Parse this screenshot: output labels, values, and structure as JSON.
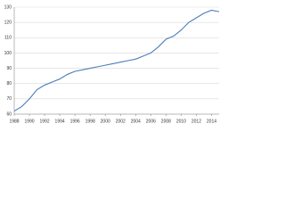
{
  "chart_data": {
    "type": "line",
    "x": [
      1988,
      1989,
      1990,
      1991,
      1992,
      1993,
      1994,
      1995,
      1996,
      1997,
      1998,
      1999,
      2000,
      2001,
      2002,
      2003,
      2004,
      2005,
      2006,
      2007,
      2008,
      2009,
      2010,
      2011,
      2012,
      2013,
      2014,
      2015
    ],
    "values": [
      62,
      65,
      70,
      76,
      79,
      81,
      83,
      86,
      88,
      89,
      90,
      91,
      92,
      93,
      94,
      95,
      96,
      98,
      100,
      104,
      109,
      111,
      115,
      120,
      123,
      126,
      128,
      127
    ],
    "color": "#4a7ebb",
    "xlim": [
      1988,
      2015
    ],
    "xticks": [
      1988,
      1990,
      1992,
      1994,
      1996,
      1998,
      2000,
      2002,
      2004,
      2006,
      2008,
      2010,
      2012,
      2014
    ],
    "ylim": [
      60,
      130
    ],
    "yticks": [
      60,
      70,
      80,
      90,
      100,
      110,
      120,
      130
    ],
    "grid": true
  }
}
